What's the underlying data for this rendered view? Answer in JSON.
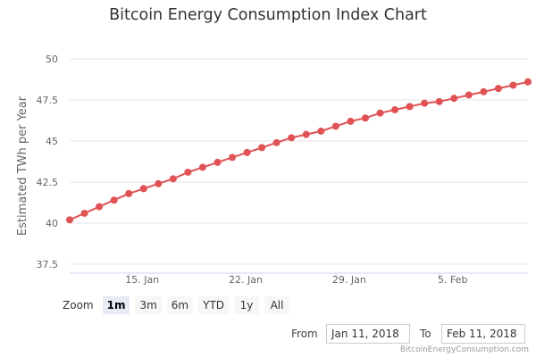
{
  "chart_data": {
    "type": "line",
    "title": "Bitcoin Energy Consumption Index Chart",
    "xlabel": "",
    "ylabel": "Estimated TWh per Year",
    "ylim": [
      37.5,
      50
    ],
    "y_ticks": [
      "37.5",
      "40",
      "42.5",
      "45",
      "47.5",
      "50"
    ],
    "x_range": [
      "2018-01-11",
      "2018-02-11"
    ],
    "x_ticks": [
      {
        "date": "2018-01-15",
        "label": "15. Jan"
      },
      {
        "date": "2018-01-22",
        "label": "22. Jan"
      },
      {
        "date": "2018-01-29",
        "label": "29. Jan"
      },
      {
        "date": "2018-02-05",
        "label": "5. Feb"
      }
    ],
    "grid": true,
    "legend": "none",
    "series": [
      {
        "name": "Estimated TWh per Year",
        "color": "#e05254",
        "x": [
          "2018-01-11",
          "2018-01-12",
          "2018-01-13",
          "2018-01-14",
          "2018-01-15",
          "2018-01-16",
          "2018-01-17",
          "2018-01-18",
          "2018-01-19",
          "2018-01-20",
          "2018-01-21",
          "2018-01-22",
          "2018-01-23",
          "2018-01-24",
          "2018-01-25",
          "2018-01-26",
          "2018-01-27",
          "2018-01-28",
          "2018-01-29",
          "2018-01-30",
          "2018-01-31",
          "2018-02-01",
          "2018-02-02",
          "2018-02-03",
          "2018-02-04",
          "2018-02-05",
          "2018-02-06",
          "2018-02-07",
          "2018-02-08",
          "2018-02-09",
          "2018-02-10",
          "2018-02-11"
        ],
        "values": [
          40.2,
          40.6,
          41.0,
          41.4,
          41.8,
          42.1,
          42.4,
          42.7,
          43.1,
          43.4,
          43.7,
          44.0,
          44.3,
          44.6,
          44.9,
          45.2,
          45.4,
          45.6,
          45.9,
          46.2,
          46.4,
          46.7,
          46.9,
          47.1,
          47.3,
          47.4,
          47.6,
          47.8,
          48.0,
          48.2,
          48.4,
          48.6
        ]
      }
    ]
  },
  "zoom": {
    "label": "Zoom",
    "active": "1m",
    "buttons": [
      "1m",
      "3m",
      "6m",
      "YTD",
      "1y",
      "All"
    ]
  },
  "range": {
    "from_label": "From",
    "from_value": "Jan 11, 2018",
    "to_label": "To",
    "to_value": "Feb 11, 2018"
  },
  "credit": "BitcoinEnergyConsumption.com"
}
